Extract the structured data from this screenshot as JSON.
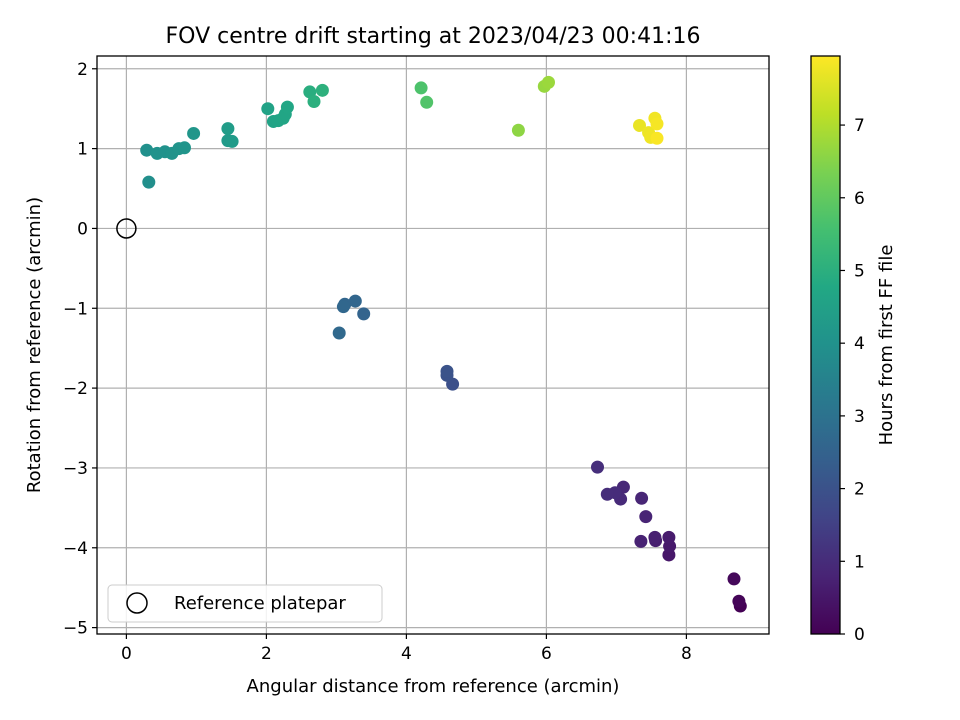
{
  "chart_data": {
    "type": "scatter",
    "title": "FOV centre drift starting at 2023/04/23 00:41:16",
    "xlabel": "Angular distance from reference (arcmin)",
    "ylabel": "Rotation from reference (arcmin)",
    "xlim": [
      -0.42,
      9.18
    ],
    "ylim": [
      -5.08,
      2.16
    ],
    "x_ticks": [
      0,
      2,
      4,
      6,
      8
    ],
    "y_ticks": [
      -5,
      -4,
      -3,
      -2,
      -1,
      0,
      1,
      2
    ],
    "grid": true,
    "legend": {
      "position": "lower-left",
      "entries": [
        "Reference platepar"
      ]
    },
    "reference_point": {
      "label": "Reference platepar",
      "x": 0,
      "y": 0,
      "marker": "open-circle"
    },
    "colorbar": {
      "label": "Hours from first FF file",
      "colormap": "viridis",
      "range": [
        0,
        7.95
      ],
      "ticks": [
        0,
        1,
        2,
        3,
        4,
        5,
        6,
        7
      ]
    },
    "points": [
      {
        "x": 8.77,
        "y": -4.73,
        "hours": 0.0
      },
      {
        "x": 8.75,
        "y": -4.67,
        "hours": 0.1
      },
      {
        "x": 8.68,
        "y": -4.39,
        "hours": 0.15
      },
      {
        "x": 7.75,
        "y": -4.09,
        "hours": 0.5
      },
      {
        "x": 7.76,
        "y": -3.98,
        "hours": 0.55
      },
      {
        "x": 7.75,
        "y": -3.87,
        "hours": 0.6
      },
      {
        "x": 7.56,
        "y": -3.91,
        "hours": 0.65
      },
      {
        "x": 7.55,
        "y": -3.87,
        "hours": 0.7
      },
      {
        "x": 7.35,
        "y": -3.92,
        "hours": 0.75
      },
      {
        "x": 7.42,
        "y": -3.61,
        "hours": 0.8
      },
      {
        "x": 7.36,
        "y": -3.38,
        "hours": 0.85
      },
      {
        "x": 7.1,
        "y": -3.24,
        "hours": 0.9
      },
      {
        "x": 7.06,
        "y": -3.39,
        "hours": 0.95
      },
      {
        "x": 6.98,
        "y": -3.31,
        "hours": 1.0
      },
      {
        "x": 6.87,
        "y": -3.33,
        "hours": 1.02
      },
      {
        "x": 6.73,
        "y": -2.99,
        "hours": 1.05
      },
      {
        "x": 4.66,
        "y": -1.95,
        "hours": 1.95
      },
      {
        "x": 4.58,
        "y": -1.84,
        "hours": 2.0
      },
      {
        "x": 4.58,
        "y": -1.79,
        "hours": 2.02
      },
      {
        "x": 3.39,
        "y": -1.07,
        "hours": 2.55
      },
      {
        "x": 3.27,
        "y": -0.91,
        "hours": 2.6
      },
      {
        "x": 3.12,
        "y": -0.95,
        "hours": 2.62
      },
      {
        "x": 3.1,
        "y": -0.98,
        "hours": 2.65
      },
      {
        "x": 3.04,
        "y": -1.31,
        "hours": 2.7
      },
      {
        "x": 0.32,
        "y": 0.58,
        "hours": 3.9
      },
      {
        "x": 0.29,
        "y": 0.98,
        "hours": 3.95
      },
      {
        "x": 0.44,
        "y": 0.94,
        "hours": 4.0
      },
      {
        "x": 0.55,
        "y": 0.96,
        "hours": 4.02
      },
      {
        "x": 0.65,
        "y": 0.94,
        "hours": 4.05
      },
      {
        "x": 0.75,
        "y": 1.0,
        "hours": 4.08
      },
      {
        "x": 0.83,
        "y": 1.01,
        "hours": 4.1
      },
      {
        "x": 0.96,
        "y": 1.19,
        "hours": 4.15
      },
      {
        "x": 1.45,
        "y": 1.1,
        "hours": 4.3
      },
      {
        "x": 1.51,
        "y": 1.09,
        "hours": 4.32
      },
      {
        "x": 1.45,
        "y": 1.25,
        "hours": 4.35
      },
      {
        "x": 2.02,
        "y": 1.5,
        "hours": 4.55
      },
      {
        "x": 2.1,
        "y": 1.34,
        "hours": 4.6
      },
      {
        "x": 2.17,
        "y": 1.35,
        "hours": 4.62
      },
      {
        "x": 2.24,
        "y": 1.38,
        "hours": 4.65
      },
      {
        "x": 2.27,
        "y": 1.43,
        "hours": 4.68
      },
      {
        "x": 2.3,
        "y": 1.52,
        "hours": 4.7
      },
      {
        "x": 2.62,
        "y": 1.71,
        "hours": 4.95
      },
      {
        "x": 2.68,
        "y": 1.59,
        "hours": 5.0
      },
      {
        "x": 2.8,
        "y": 1.73,
        "hours": 5.05
      },
      {
        "x": 4.21,
        "y": 1.76,
        "hours": 5.7
      },
      {
        "x": 4.29,
        "y": 1.58,
        "hours": 5.75
      },
      {
        "x": 5.6,
        "y": 1.23,
        "hours": 6.6
      },
      {
        "x": 5.97,
        "y": 1.78,
        "hours": 6.7
      },
      {
        "x": 6.03,
        "y": 1.83,
        "hours": 6.75
      },
      {
        "x": 7.33,
        "y": 1.29,
        "hours": 7.7
      },
      {
        "x": 7.46,
        "y": 1.2,
        "hours": 7.75
      },
      {
        "x": 7.49,
        "y": 1.14,
        "hours": 7.78
      },
      {
        "x": 7.55,
        "y": 1.38,
        "hours": 7.8
      },
      {
        "x": 7.58,
        "y": 1.31,
        "hours": 7.85
      },
      {
        "x": 7.58,
        "y": 1.13,
        "hours": 7.9
      }
    ]
  }
}
